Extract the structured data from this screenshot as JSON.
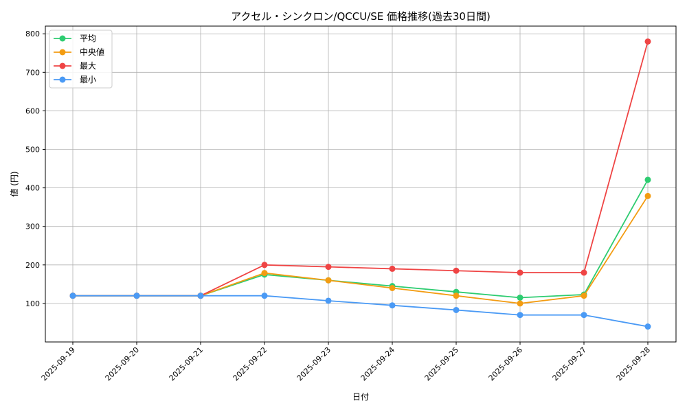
{
  "chart_data": {
    "type": "line",
    "title": "アクセル・シンクロン/QCCU/SE 価格推移(過去30日間)",
    "xlabel": "日付",
    "ylabel": "値 (円)",
    "categories": [
      "2025-09-19",
      "2025-09-20",
      "2025-09-21",
      "2025-09-22",
      "2025-09-23",
      "2025-09-24",
      "2025-09-25",
      "2025-09-26",
      "2025-09-27",
      "2025-09-28"
    ],
    "ylim": [
      0,
      820
    ],
    "yticks": [
      100,
      200,
      300,
      400,
      500,
      600,
      700,
      800
    ],
    "grid": true,
    "legend_position": "top-left",
    "series": [
      {
        "name": "平均",
        "color": "#2ecc71",
        "values": [
          120,
          120,
          120,
          175,
          160,
          145,
          130,
          115,
          123,
          421
        ]
      },
      {
        "name": "中央値",
        "color": "#f39c12",
        "values": [
          120,
          120,
          120,
          179,
          160,
          140,
          120,
          100,
          120,
          379
        ]
      },
      {
        "name": "最大",
        "color": "#ef4444",
        "values": [
          120,
          120,
          120,
          200,
          195,
          190,
          185,
          180,
          180,
          780
        ]
      },
      {
        "name": "最小",
        "color": "#4a9af5",
        "values": [
          120,
          120,
          120,
          120,
          107,
          95,
          83,
          70,
          70,
          40
        ]
      }
    ]
  }
}
